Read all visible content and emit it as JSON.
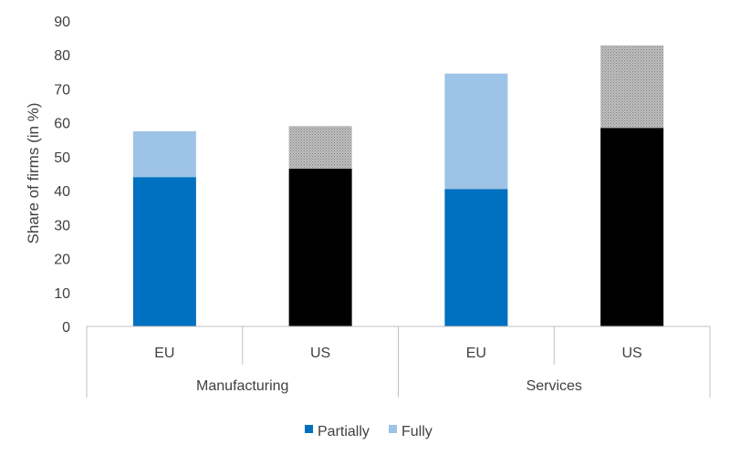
{
  "chart_data": {
    "type": "bar",
    "stacked": true,
    "ylabel": "Share of firms (in %)",
    "ylim": [
      0,
      90
    ],
    "y_ticks": [
      0,
      10,
      20,
      30,
      40,
      50,
      60,
      70,
      80,
      90
    ],
    "groups": [
      {
        "label": "Manufacturing",
        "categories": [
          "EU",
          "US"
        ]
      },
      {
        "label": "Services",
        "categories": [
          "EU",
          "US"
        ]
      }
    ],
    "categories": [
      "EU",
      "US",
      "EU",
      "US"
    ],
    "series": [
      {
        "name": "Partially",
        "values": [
          44,
          46.5,
          40.5,
          58.5
        ]
      },
      {
        "name": "Fully",
        "values": [
          13.5,
          12.5,
          34,
          24.3
        ]
      }
    ],
    "bar_colors": {
      "EU": {
        "Partially": "#0070c0",
        "Fully": "#9dc3e6"
      },
      "US": {
        "Partially": "#000000",
        "Fully": "#a6a6a6"
      }
    },
    "legend": {
      "position": "bottom",
      "items": [
        {
          "label": "Partially",
          "color": "#0070c0"
        },
        {
          "label": "Fully",
          "color": "#9dc3e6"
        }
      ]
    },
    "grid": false
  }
}
